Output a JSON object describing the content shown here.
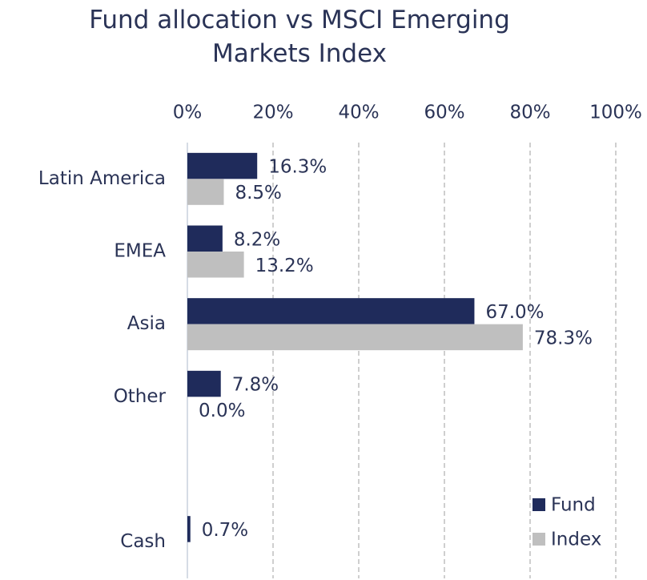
{
  "chart_data": {
    "type": "hbar",
    "title": "Fund allocation vs MSCI Emerging Markets Index",
    "categories": [
      "Latin America",
      "EMEA",
      "Asia",
      "Other",
      null,
      "Cash"
    ],
    "series": [
      {
        "name": "Fund",
        "color": "#1f2b5b",
        "values": [
          16.3,
          8.2,
          67.0,
          7.8,
          null,
          0.7
        ],
        "value_labels": [
          "16.3%",
          "8.2%",
          "67.0%",
          "7.8%",
          null,
          "0.7%"
        ]
      },
      {
        "name": "Index",
        "color": "#bfbfbf",
        "values": [
          8.5,
          13.2,
          78.3,
          0.0,
          null,
          null
        ],
        "value_labels": [
          "8.5%",
          "13.2%",
          "78.3%",
          "0.0%",
          null,
          null
        ]
      }
    ],
    "xlim": [
      0,
      100
    ],
    "xticks": [
      {
        "value": 0,
        "label": "0%"
      },
      {
        "value": 20,
        "label": "20%"
      },
      {
        "value": 40,
        "label": "40%"
      },
      {
        "value": 60,
        "label": "60%"
      },
      {
        "value": 80,
        "label": "80%"
      },
      {
        "value": 100,
        "label": "100%"
      }
    ],
    "grid": true,
    "legend": "lower right"
  }
}
